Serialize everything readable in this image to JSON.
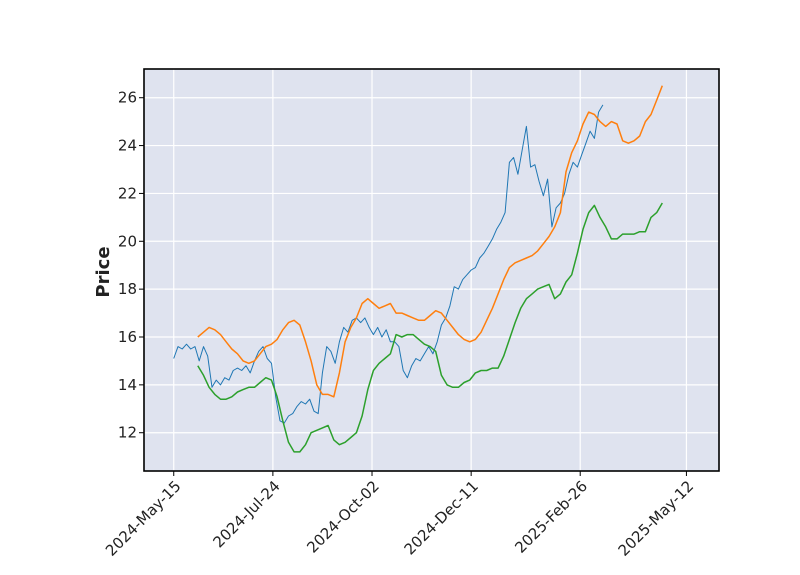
{
  "chart_data": {
    "type": "line",
    "title": "",
    "xlabel": "",
    "ylabel": "Price",
    "x_axis": {
      "type": "date",
      "ticks": [
        "2024-05-15",
        "2024-07-24",
        "2024-10-02",
        "2024-12-11",
        "2025-02-26",
        "2025-05-12"
      ],
      "tick_labels": [
        "2024-May-15",
        "2024-Jul-24",
        "2024-Oct-02",
        "2024-Dec-11",
        "2025-Feb-26",
        "2025-May-12"
      ],
      "range": [
        "2024-04-24",
        "2025-05-35"
      ]
    },
    "y_axis": {
      "range": [
        10.4,
        27.2
      ],
      "ticks": [
        12,
        14,
        16,
        18,
        20,
        22,
        24,
        26
      ]
    },
    "grid": true,
    "background": "#dfe3ef",
    "legend": "none",
    "series": [
      {
        "color": "#1f77b4",
        "points": [
          [
            "2024-05-15",
            15.1
          ],
          [
            "2024-05-18",
            15.6
          ],
          [
            "2024-05-21",
            15.5
          ],
          [
            "2024-05-24",
            15.7
          ],
          [
            "2024-05-27",
            15.5
          ],
          [
            "2024-05-30",
            15.6
          ],
          [
            "2024-06-02",
            15.0
          ],
          [
            "2024-06-05",
            15.6
          ],
          [
            "2024-06-08",
            15.2
          ],
          [
            "2024-06-11",
            13.9
          ],
          [
            "2024-06-14",
            14.2
          ],
          [
            "2024-06-17",
            14.0
          ],
          [
            "2024-06-20",
            14.3
          ],
          [
            "2024-06-23",
            14.2
          ],
          [
            "2024-06-26",
            14.6
          ],
          [
            "2024-06-29",
            14.7
          ],
          [
            "2024-07-02",
            14.6
          ],
          [
            "2024-07-05",
            14.8
          ],
          [
            "2024-07-08",
            14.5
          ],
          [
            "2024-07-11",
            15.0
          ],
          [
            "2024-07-14",
            15.4
          ],
          [
            "2024-07-17",
            15.6
          ],
          [
            "2024-07-20",
            15.1
          ],
          [
            "2024-07-23",
            14.9
          ],
          [
            "2024-07-26",
            13.5
          ],
          [
            "2024-07-29",
            12.5
          ],
          [
            "2024-08-01",
            12.4
          ],
          [
            "2024-08-04",
            12.7
          ],
          [
            "2024-08-07",
            12.8
          ],
          [
            "2024-08-10",
            13.1
          ],
          [
            "2024-08-13",
            13.3
          ],
          [
            "2024-08-16",
            13.2
          ],
          [
            "2024-08-19",
            13.4
          ],
          [
            "2024-08-22",
            12.9
          ],
          [
            "2024-08-25",
            12.8
          ],
          [
            "2024-08-28",
            14.5
          ],
          [
            "2024-08-31",
            15.6
          ],
          [
            "2024-09-03",
            15.4
          ],
          [
            "2024-09-06",
            14.9
          ],
          [
            "2024-09-09",
            15.8
          ],
          [
            "2024-09-12",
            16.4
          ],
          [
            "2024-09-15",
            16.2
          ],
          [
            "2024-09-18",
            16.7
          ],
          [
            "2024-09-21",
            16.8
          ],
          [
            "2024-09-24",
            16.6
          ],
          [
            "2024-09-27",
            16.8
          ],
          [
            "2024-09-30",
            16.4
          ],
          [
            "2024-10-03",
            16.1
          ],
          [
            "2024-10-06",
            16.4
          ],
          [
            "2024-10-09",
            16.0
          ],
          [
            "2024-10-12",
            16.3
          ],
          [
            "2024-10-15",
            15.8
          ],
          [
            "2024-10-18",
            15.8
          ],
          [
            "2024-10-21",
            15.6
          ],
          [
            "2024-10-24",
            14.6
          ],
          [
            "2024-10-27",
            14.3
          ],
          [
            "2024-10-30",
            14.8
          ],
          [
            "2024-11-02",
            15.1
          ],
          [
            "2024-11-05",
            15.0
          ],
          [
            "2024-11-08",
            15.3
          ],
          [
            "2024-11-11",
            15.6
          ],
          [
            "2024-11-14",
            15.3
          ],
          [
            "2024-11-17",
            15.8
          ],
          [
            "2024-11-20",
            16.5
          ],
          [
            "2024-11-23",
            16.8
          ],
          [
            "2024-11-26",
            17.3
          ],
          [
            "2024-11-29",
            18.1
          ],
          [
            "2024-12-02",
            18.0
          ],
          [
            "2024-12-05",
            18.4
          ],
          [
            "2024-12-08",
            18.6
          ],
          [
            "2024-12-11",
            18.8
          ],
          [
            "2024-12-14",
            18.9
          ],
          [
            "2024-12-17",
            19.3
          ],
          [
            "2024-12-20",
            19.5
          ],
          [
            "2024-12-23",
            19.8
          ],
          [
            "2024-12-26",
            20.1
          ],
          [
            "2024-12-29",
            20.5
          ],
          [
            "2025-01-01",
            20.8
          ],
          [
            "2025-01-04",
            21.2
          ],
          [
            "2025-01-07",
            23.3
          ],
          [
            "2025-01-10",
            23.5
          ],
          [
            "2025-01-13",
            22.8
          ],
          [
            "2025-01-16",
            23.8
          ],
          [
            "2025-01-19",
            24.8
          ],
          [
            "2025-01-22",
            23.1
          ],
          [
            "2025-01-25",
            23.2
          ],
          [
            "2025-01-28",
            22.5
          ],
          [
            "2025-01-31",
            21.9
          ],
          [
            "2025-02-03",
            22.6
          ],
          [
            "2025-02-06",
            20.6
          ],
          [
            "2025-02-09",
            21.4
          ],
          [
            "2025-02-12",
            21.6
          ],
          [
            "2025-02-15",
            22.0
          ],
          [
            "2025-02-18",
            22.8
          ],
          [
            "2025-02-21",
            23.3
          ],
          [
            "2025-02-24",
            23.1
          ],
          [
            "2025-02-27",
            23.6
          ],
          [
            "2025-03-02",
            24.1
          ],
          [
            "2025-03-05",
            24.6
          ],
          [
            "2025-03-08",
            24.3
          ],
          [
            "2025-03-11",
            25.4
          ],
          [
            "2025-03-14",
            25.7
          ]
        ]
      },
      {
        "color": "#ff7f0e",
        "points": [
          [
            "2024-06-01",
            16.0
          ],
          [
            "2024-06-05",
            16.2
          ],
          [
            "2024-06-09",
            16.4
          ],
          [
            "2024-06-13",
            16.3
          ],
          [
            "2024-06-17",
            16.1
          ],
          [
            "2024-06-21",
            15.8
          ],
          [
            "2024-06-25",
            15.5
          ],
          [
            "2024-06-29",
            15.3
          ],
          [
            "2024-07-03",
            15.0
          ],
          [
            "2024-07-07",
            14.9
          ],
          [
            "2024-07-11",
            15.0
          ],
          [
            "2024-07-15",
            15.3
          ],
          [
            "2024-07-19",
            15.6
          ],
          [
            "2024-07-23",
            15.7
          ],
          [
            "2024-07-27",
            15.9
          ],
          [
            "2024-07-31",
            16.3
          ],
          [
            "2024-08-04",
            16.6
          ],
          [
            "2024-08-08",
            16.7
          ],
          [
            "2024-08-12",
            16.5
          ],
          [
            "2024-08-16",
            15.8
          ],
          [
            "2024-08-20",
            15.0
          ],
          [
            "2024-08-24",
            14.0
          ],
          [
            "2024-08-28",
            13.6
          ],
          [
            "2024-09-01",
            13.6
          ],
          [
            "2024-09-05",
            13.5
          ],
          [
            "2024-09-09",
            14.5
          ],
          [
            "2024-09-13",
            15.8
          ],
          [
            "2024-09-17",
            16.4
          ],
          [
            "2024-09-21",
            16.8
          ],
          [
            "2024-09-25",
            17.4
          ],
          [
            "2024-09-29",
            17.6
          ],
          [
            "2024-10-03",
            17.4
          ],
          [
            "2024-10-07",
            17.2
          ],
          [
            "2024-10-11",
            17.3
          ],
          [
            "2024-10-15",
            17.4
          ],
          [
            "2024-10-19",
            17.0
          ],
          [
            "2024-10-23",
            17.0
          ],
          [
            "2024-10-27",
            16.9
          ],
          [
            "2024-10-31",
            16.8
          ],
          [
            "2024-11-04",
            16.7
          ],
          [
            "2024-11-08",
            16.7
          ],
          [
            "2024-11-12",
            16.9
          ],
          [
            "2024-11-16",
            17.1
          ],
          [
            "2024-11-20",
            17.0
          ],
          [
            "2024-11-24",
            16.7
          ],
          [
            "2024-11-28",
            16.4
          ],
          [
            "2024-12-02",
            16.1
          ],
          [
            "2024-12-06",
            15.9
          ],
          [
            "2024-12-10",
            15.8
          ],
          [
            "2024-12-14",
            15.9
          ],
          [
            "2024-12-18",
            16.2
          ],
          [
            "2024-12-22",
            16.7
          ],
          [
            "2024-12-26",
            17.2
          ],
          [
            "2024-12-30",
            17.8
          ],
          [
            "2025-01-03",
            18.4
          ],
          [
            "2025-01-07",
            18.9
          ],
          [
            "2025-01-11",
            19.1
          ],
          [
            "2025-01-15",
            19.2
          ],
          [
            "2025-01-19",
            19.3
          ],
          [
            "2025-01-23",
            19.4
          ],
          [
            "2025-01-27",
            19.6
          ],
          [
            "2025-01-31",
            19.9
          ],
          [
            "2025-02-04",
            20.2
          ],
          [
            "2025-02-08",
            20.6
          ],
          [
            "2025-02-12",
            21.2
          ],
          [
            "2025-02-16",
            22.9
          ],
          [
            "2025-02-20",
            23.7
          ],
          [
            "2025-02-24",
            24.2
          ],
          [
            "2025-02-28",
            24.9
          ],
          [
            "2025-03-04",
            25.4
          ],
          [
            "2025-03-08",
            25.3
          ],
          [
            "2025-03-12",
            25.0
          ],
          [
            "2025-03-16",
            24.8
          ],
          [
            "2025-03-20",
            25.0
          ],
          [
            "2025-03-24",
            24.9
          ],
          [
            "2025-03-28",
            24.2
          ],
          [
            "2025-04-01",
            24.1
          ],
          [
            "2025-04-05",
            24.2
          ],
          [
            "2025-04-09",
            24.4
          ],
          [
            "2025-04-13",
            25.0
          ],
          [
            "2025-04-17",
            25.3
          ],
          [
            "2025-04-21",
            25.9
          ],
          [
            "2025-04-25",
            26.5
          ]
        ]
      },
      {
        "color": "#2ca02c",
        "points": [
          [
            "2024-06-01",
            14.8
          ],
          [
            "2024-06-05",
            14.4
          ],
          [
            "2024-06-09",
            13.9
          ],
          [
            "2024-06-13",
            13.6
          ],
          [
            "2024-06-17",
            13.4
          ],
          [
            "2024-06-21",
            13.4
          ],
          [
            "2024-06-25",
            13.5
          ],
          [
            "2024-06-29",
            13.7
          ],
          [
            "2024-07-03",
            13.8
          ],
          [
            "2024-07-07",
            13.9
          ],
          [
            "2024-07-11",
            13.9
          ],
          [
            "2024-07-15",
            14.1
          ],
          [
            "2024-07-19",
            14.3
          ],
          [
            "2024-07-23",
            14.2
          ],
          [
            "2024-07-27",
            13.5
          ],
          [
            "2024-07-31",
            12.5
          ],
          [
            "2024-08-04",
            11.6
          ],
          [
            "2024-08-08",
            11.2
          ],
          [
            "2024-08-12",
            11.2
          ],
          [
            "2024-08-16",
            11.5
          ],
          [
            "2024-08-20",
            12.0
          ],
          [
            "2024-08-24",
            12.1
          ],
          [
            "2024-08-28",
            12.2
          ],
          [
            "2024-09-01",
            12.3
          ],
          [
            "2024-09-05",
            11.7
          ],
          [
            "2024-09-09",
            11.5
          ],
          [
            "2024-09-13",
            11.6
          ],
          [
            "2024-09-17",
            11.8
          ],
          [
            "2024-09-21",
            12.0
          ],
          [
            "2024-09-25",
            12.7
          ],
          [
            "2024-09-29",
            13.8
          ],
          [
            "2024-10-03",
            14.6
          ],
          [
            "2024-10-07",
            14.9
          ],
          [
            "2024-10-11",
            15.1
          ],
          [
            "2024-10-15",
            15.3
          ],
          [
            "2024-10-19",
            16.1
          ],
          [
            "2024-10-23",
            16.0
          ],
          [
            "2024-10-27",
            16.1
          ],
          [
            "2024-10-31",
            16.1
          ],
          [
            "2024-11-04",
            15.9
          ],
          [
            "2024-11-08",
            15.7
          ],
          [
            "2024-11-12",
            15.6
          ],
          [
            "2024-11-16",
            15.4
          ],
          [
            "2024-11-20",
            14.4
          ],
          [
            "2024-11-24",
            14.0
          ],
          [
            "2024-11-28",
            13.9
          ],
          [
            "2024-12-02",
            13.9
          ],
          [
            "2024-12-06",
            14.1
          ],
          [
            "2024-12-10",
            14.2
          ],
          [
            "2024-12-14",
            14.5
          ],
          [
            "2024-12-18",
            14.6
          ],
          [
            "2024-12-22",
            14.6
          ],
          [
            "2024-12-26",
            14.7
          ],
          [
            "2024-12-30",
            14.7
          ],
          [
            "2025-01-03",
            15.2
          ],
          [
            "2025-01-07",
            15.9
          ],
          [
            "2025-01-11",
            16.6
          ],
          [
            "2025-01-15",
            17.2
          ],
          [
            "2025-01-19",
            17.6
          ],
          [
            "2025-01-23",
            17.8
          ],
          [
            "2025-01-27",
            18.0
          ],
          [
            "2025-01-31",
            18.1
          ],
          [
            "2025-02-04",
            18.2
          ],
          [
            "2025-02-08",
            17.6
          ],
          [
            "2025-02-12",
            17.8
          ],
          [
            "2025-02-16",
            18.3
          ],
          [
            "2025-02-20",
            18.6
          ],
          [
            "2025-02-24",
            19.5
          ],
          [
            "2025-02-28",
            20.5
          ],
          [
            "2025-03-04",
            21.2
          ],
          [
            "2025-03-08",
            21.5
          ],
          [
            "2025-03-12",
            21.0
          ],
          [
            "2025-03-16",
            20.6
          ],
          [
            "2025-03-20",
            20.1
          ],
          [
            "2025-03-24",
            20.1
          ],
          [
            "2025-03-28",
            20.3
          ],
          [
            "2025-04-01",
            20.3
          ],
          [
            "2025-04-05",
            20.3
          ],
          [
            "2025-04-09",
            20.4
          ],
          [
            "2025-04-13",
            20.4
          ],
          [
            "2025-04-17",
            21.0
          ],
          [
            "2025-04-21",
            21.2
          ],
          [
            "2025-04-25",
            21.6
          ]
        ]
      }
    ]
  }
}
